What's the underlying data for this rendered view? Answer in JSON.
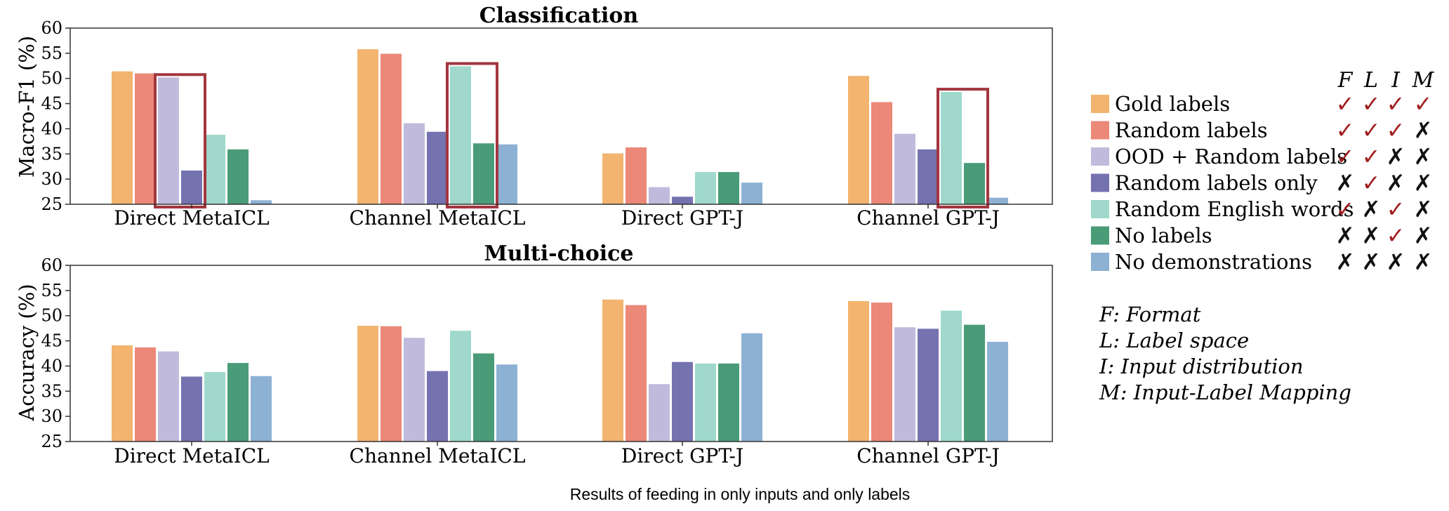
{
  "chart_data": [
    {
      "type": "bar",
      "title": "Classification",
      "ylabel": "Macro-F1 (%)",
      "xlabel": "",
      "ylim": [
        25,
        60
      ],
      "yticks": [
        25,
        30,
        35,
        40,
        45,
        50,
        55,
        60
      ],
      "categories": [
        "Direct MetaICL",
        "Channel MetaICL",
        "Direct GPT-J",
        "Channel GPT-J"
      ],
      "series": [
        {
          "name": "Gold labels",
          "values": [
            51.4,
            55.8,
            35.1,
            50.5
          ]
        },
        {
          "name": "Random labels",
          "values": [
            51.0,
            54.9,
            36.3,
            45.3
          ]
        },
        {
          "name": "OOD + Random labels",
          "values": [
            50.2,
            41.1,
            28.4,
            39.0
          ]
        },
        {
          "name": "Random labels only",
          "values": [
            31.7,
            39.4,
            26.5,
            35.9
          ]
        },
        {
          "name": "Random English words",
          "values": [
            38.8,
            52.4,
            31.4,
            47.3
          ]
        },
        {
          "name": "No labels",
          "values": [
            35.9,
            37.1,
            31.4,
            33.2
          ]
        },
        {
          "name": "No demonstrations",
          "values": [
            25.8,
            36.9,
            29.3,
            26.3
          ]
        }
      ],
      "highlight_boxes": [
        {
          "category": "Direct MetaICL",
          "series": [
            "OOD + Random labels",
            "Random labels only"
          ]
        },
        {
          "category": "Channel MetaICL",
          "series": [
            "Random English words",
            "No labels"
          ]
        },
        {
          "category": "Channel GPT-J",
          "series": [
            "Random English words",
            "No labels"
          ]
        }
      ],
      "grid": false
    },
    {
      "type": "bar",
      "title": "Multi-choice",
      "ylabel": "Accuracy (%)",
      "xlabel": "",
      "ylim": [
        25,
        60
      ],
      "yticks": [
        25,
        30,
        35,
        40,
        45,
        50,
        55,
        60
      ],
      "categories": [
        "Direct MetaICL",
        "Channel MetaICL",
        "Direct GPT-J",
        "Channel GPT-J"
      ],
      "series": [
        {
          "name": "Gold labels",
          "values": [
            44.1,
            48.0,
            53.2,
            52.9
          ]
        },
        {
          "name": "Random labels",
          "values": [
            43.7,
            47.9,
            52.1,
            52.6
          ]
        },
        {
          "name": "OOD + Random labels",
          "values": [
            42.9,
            45.6,
            36.4,
            47.7
          ]
        },
        {
          "name": "Random labels only",
          "values": [
            37.9,
            39.0,
            40.8,
            47.4
          ]
        },
        {
          "name": "Random English words",
          "values": [
            38.8,
            47.0,
            40.5,
            51.0
          ]
        },
        {
          "name": "No labels",
          "values": [
            40.6,
            42.5,
            40.5,
            48.2
          ]
        },
        {
          "name": "No demonstrations",
          "values": [
            38.0,
            40.3,
            46.5,
            44.8
          ]
        }
      ],
      "grid": false
    }
  ],
  "legend": {
    "position": "right",
    "columns": [
      "F",
      "L",
      "I",
      "M"
    ],
    "items": [
      {
        "label": "Gold labels",
        "color": "#f2b46e",
        "marks": [
          "✓",
          "✓",
          "✓",
          "✓"
        ]
      },
      {
        "label": "Random labels",
        "color": "#ec8878",
        "marks": [
          "✓",
          "✓",
          "✓",
          "✗"
        ]
      },
      {
        "label": "OOD + Random labels",
        "color": "#c0bbdc",
        "marks": [
          "✓",
          "✓",
          "✗",
          "✗"
        ]
      },
      {
        "label": "Random labels only",
        "color": "#7572b0",
        "marks": [
          "✗",
          "✓",
          "✗",
          "✗"
        ]
      },
      {
        "label": "Random English words",
        "color": "#a0d8cc",
        "marks": [
          "✓",
          "✗",
          "✓",
          "✗"
        ]
      },
      {
        "label": "No labels",
        "color": "#4a9b77",
        "marks": [
          "✗",
          "✗",
          "✓",
          "✗"
        ]
      },
      {
        "label": "No demonstrations",
        "color": "#8db1d3",
        "marks": [
          "✗",
          "✗",
          "✗",
          "✗"
        ]
      }
    ]
  },
  "notes": [
    "F: Format",
    "L: Label space",
    "I: Input distribution",
    "M: Input-Label Mapping"
  ],
  "caption": "Results of feeding in only inputs and only labels",
  "colors": {
    "check": "#a01e1e",
    "cross": "#111111",
    "highlight": "#a3363f",
    "axis": "#333333"
  }
}
